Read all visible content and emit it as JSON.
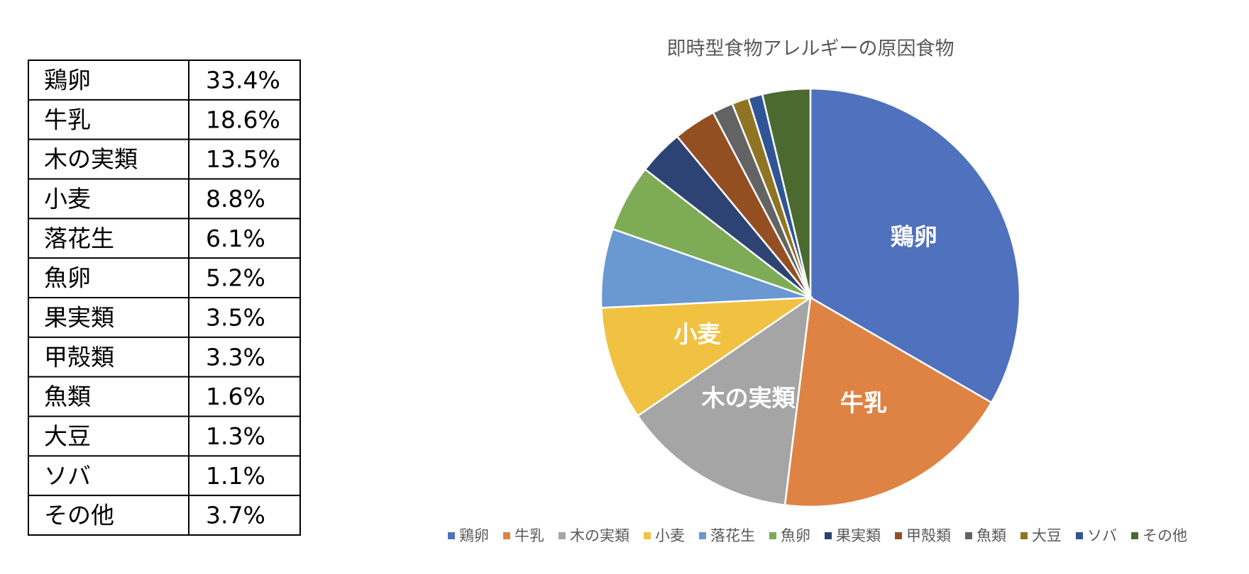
{
  "table": {
    "rows": [
      [
        "鶏卵",
        "33.4%"
      ],
      [
        "牛乳",
        "18.6%"
      ],
      [
        "木の実類",
        "13.5%"
      ],
      [
        "小麦",
        "8.8%"
      ],
      [
        "落花生",
        "6.1%"
      ],
      [
        "魚卵",
        "5.2%"
      ],
      [
        "果実類",
        "3.5%"
      ],
      [
        "甲殻類",
        "3.3%"
      ],
      [
        "魚類",
        "1.6%"
      ],
      [
        "大豆",
        "1.3%"
      ],
      [
        "ソバ",
        "1.1%"
      ],
      [
        "その他",
        "3.7%"
      ]
    ]
  },
  "chart_data": {
    "type": "pie",
    "title": "即時型食物アレルギーの原因食物",
    "categories": [
      "鶏卵",
      "牛乳",
      "木の実類",
      "小麦",
      "落花生",
      "魚卵",
      "果実類",
      "甲殻類",
      "魚類",
      "大豆",
      "ソバ",
      "その他"
    ],
    "values": [
      33.4,
      18.6,
      13.5,
      8.8,
      6.1,
      5.2,
      3.5,
      3.3,
      1.6,
      1.3,
      1.1,
      3.7
    ],
    "colors": [
      "#4f71be",
      "#de8344",
      "#a5a5a5",
      "#f1c142",
      "#6a98d0",
      "#7eab55",
      "#2d4374",
      "#934f22",
      "#636363",
      "#8f7424",
      "#2f5596",
      "#4a6a30"
    ],
    "legend": "bottom"
  }
}
